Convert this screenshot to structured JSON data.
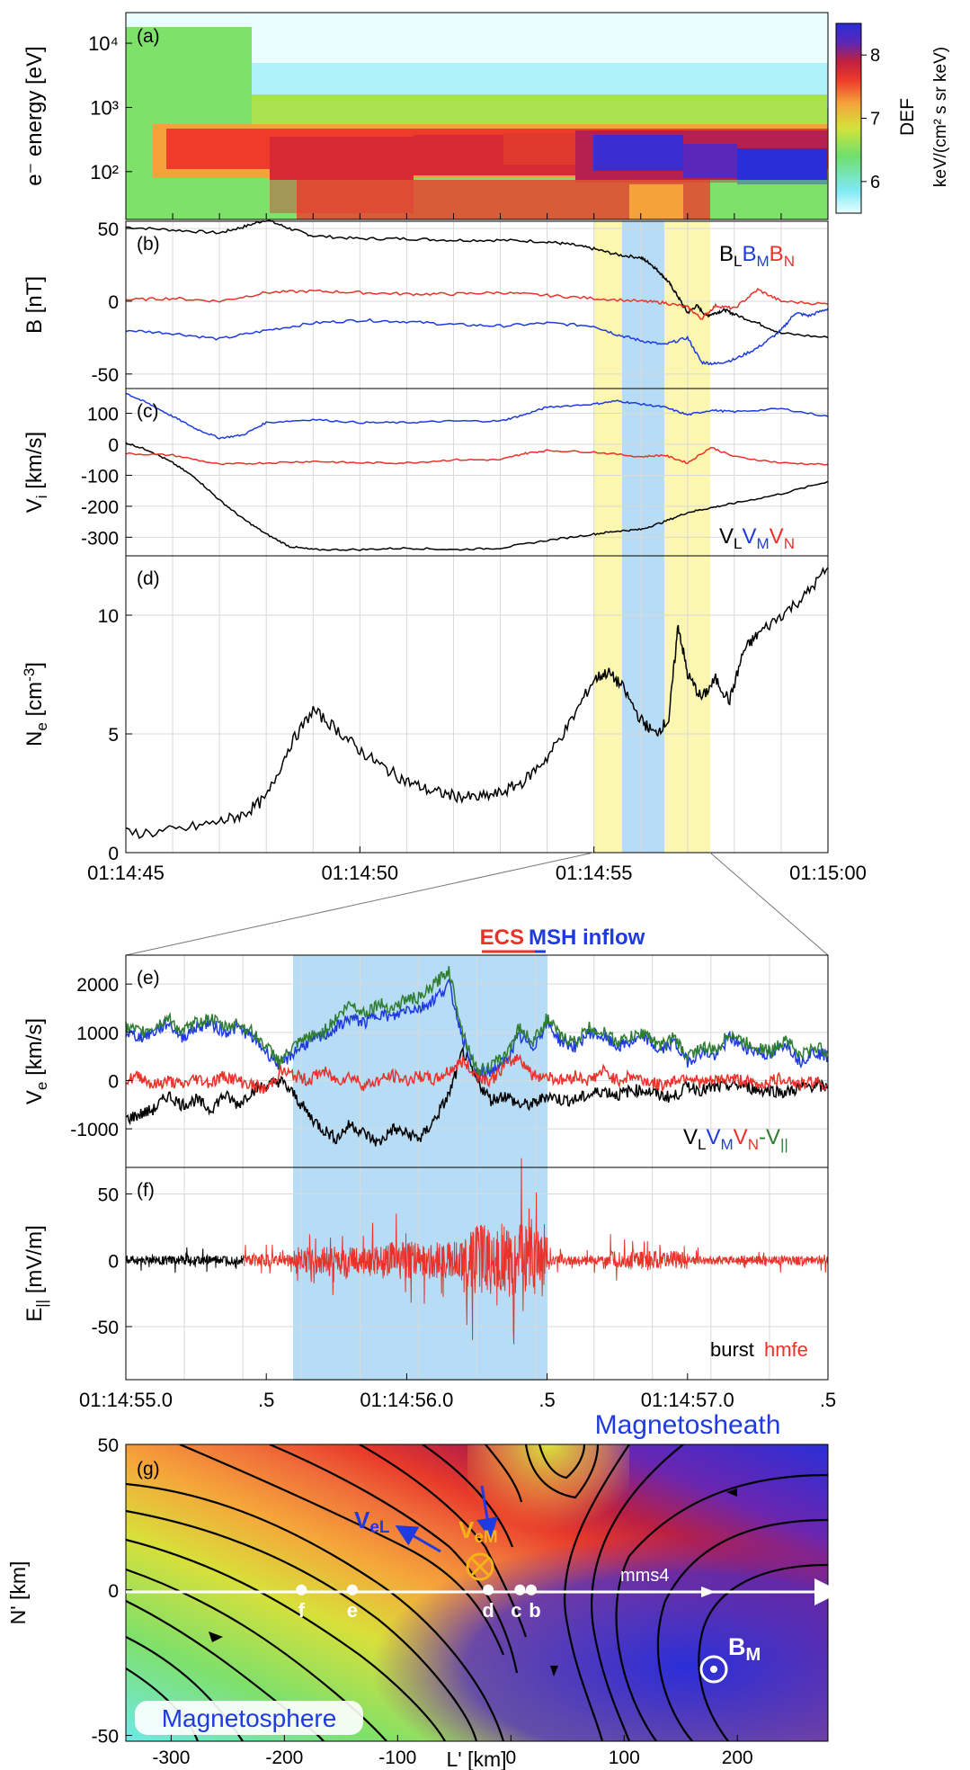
{
  "colors": {
    "black": "#000000",
    "blue": "#1f3be0",
    "red": "#e8322a",
    "green": "#2e7d32",
    "shade_yellow": "#fbf6b0",
    "shade_blue": "#b7dcf5",
    "white": "#ffffff"
  },
  "chart_data": [
    {
      "panel_label": "(a)",
      "type": "heatmap",
      "ylabel": "e⁻ energy [eV]",
      "yscale": "log",
      "ylim": [
        18,
        30000
      ],
      "ytick_labels": [
        "10⁴",
        "10³",
        "10²"
      ],
      "ytick_values": [
        10000,
        1000,
        100
      ],
      "colorbar": {
        "label": "DEF",
        "units": "keV/(cm² s sr keV)",
        "ticks": [
          "8",
          "7",
          "6"
        ],
        "range": [
          5.5,
          8.5
        ],
        "colors": [
          "#e8ffff",
          "#7fe9f5",
          "#6ee06e",
          "#d4e23a",
          "#f5a23a",
          "#ee3b2a",
          "#c02040",
          "#5b27b8",
          "#2a2ed8"
        ]
      },
      "bands": [
        {
          "t_start": 0.0,
          "t_end": 3.0,
          "low_eV": 18,
          "high_eV": 6000,
          "level": 7.0
        },
        {
          "t_start": 0.8,
          "t_end": 15.0,
          "low_eV": 40,
          "high_eV": 400,
          "level": 7.9
        },
        {
          "t_start": 3.0,
          "t_end": 8.0,
          "low_eV": 25,
          "high_eV": 300,
          "level": 8.0
        },
        {
          "t_start": 11.0,
          "t_end": 15.0,
          "low_eV": 30,
          "high_eV": 200,
          "level": 8.2
        }
      ]
    },
    {
      "panel_label": "(b)",
      "type": "line",
      "ylabel": "B [nT]",
      "ylim": [
        -60,
        55
      ],
      "ytick_values": [
        50,
        0,
        -50
      ],
      "legend": [
        "B",
        "L",
        "B",
        "M",
        "B",
        "N"
      ],
      "series": [
        {
          "name": "L",
          "color": "black",
          "x": [
            0,
            1,
            2,
            2.5,
            3,
            3.5,
            4,
            5,
            6,
            7,
            8,
            9,
            9.5,
            10,
            10.5,
            11,
            11.2,
            11.4,
            11.6,
            11.8,
            12.0,
            12.2,
            12.4,
            12.6,
            12.8,
            13,
            13.5,
            14,
            15
          ],
          "y": [
            51,
            49,
            47,
            51,
            56,
            50,
            45,
            43,
            43,
            42,
            42,
            41,
            39,
            36,
            32,
            30,
            26,
            20,
            13,
            3,
            -8,
            -3,
            -10,
            -8,
            -6,
            -9,
            -15,
            -22,
            -25
          ]
        },
        {
          "name": "M",
          "color": "blue",
          "x": [
            0,
            1,
            2,
            3,
            4,
            5,
            6,
            7,
            8,
            9,
            10,
            10.5,
            11,
            11.5,
            12,
            12.3,
            12.6,
            13,
            13.5,
            14,
            14.3,
            14.6,
            15
          ],
          "y": [
            -20,
            -22,
            -26,
            -20,
            -15,
            -13,
            -14,
            -16,
            -17,
            -15,
            -17,
            -23,
            -27,
            -30,
            -25,
            -42,
            -43,
            -40,
            -32,
            -20,
            -8,
            -10,
            -5
          ]
        },
        {
          "name": "N",
          "color": "red",
          "x": [
            0,
            1,
            2,
            3,
            4,
            5,
            6,
            7,
            8,
            9,
            10,
            11,
            11.5,
            12,
            12.3,
            12.6,
            13,
            13.5,
            14,
            15
          ],
          "y": [
            1,
            2,
            0,
            6,
            7,
            6,
            5,
            5,
            6,
            4,
            2,
            0,
            -1,
            -4,
            -12,
            -3,
            -5,
            8,
            0,
            -2
          ]
        }
      ]
    },
    {
      "panel_label": "(c)",
      "type": "line",
      "ylabel": "V_i [km/s]",
      "ylim": [
        -360,
        180
      ],
      "ytick_values": [
        100,
        0,
        -100,
        -200,
        -300
      ],
      "legend": [
        "V",
        "L",
        "V",
        "M",
        "V",
        "N"
      ],
      "series": [
        {
          "name": "L",
          "color": "black",
          "x": [
            0,
            0.5,
            1,
            1.5,
            2,
            2.5,
            3,
            3.5,
            4,
            5,
            6,
            7,
            8,
            9,
            10,
            10.5,
            11,
            11.5,
            12,
            12.5,
            13,
            14,
            15
          ],
          "y": [
            5,
            -20,
            -60,
            -110,
            -180,
            -240,
            -290,
            -330,
            -340,
            -340,
            -335,
            -340,
            -335,
            -310,
            -290,
            -280,
            -275,
            -250,
            -220,
            -205,
            -190,
            -160,
            -120
          ]
        },
        {
          "name": "M",
          "color": "blue",
          "x": [
            0,
            0.5,
            1,
            1.5,
            2,
            2.5,
            3,
            4,
            5,
            6,
            7,
            8,
            8.5,
            9,
            10,
            10.5,
            11,
            11.5,
            12,
            12.5,
            13,
            14,
            15
          ],
          "y": [
            165,
            130,
            90,
            50,
            20,
            30,
            70,
            80,
            70,
            70,
            75,
            75,
            95,
            120,
            130,
            140,
            130,
            120,
            95,
            110,
            105,
            115,
            90
          ]
        },
        {
          "name": "N",
          "color": "red",
          "x": [
            0,
            1,
            2,
            3,
            4,
            5,
            6,
            7,
            8,
            8.5,
            9,
            10,
            11,
            11.5,
            12,
            12.5,
            13,
            14,
            15
          ],
          "y": [
            -30,
            -35,
            -65,
            -60,
            -55,
            -60,
            -60,
            -50,
            -50,
            -30,
            -20,
            -25,
            -40,
            -35,
            -60,
            -10,
            -40,
            -60,
            -65
          ]
        }
      ]
    },
    {
      "panel_label": "(d)",
      "type": "line",
      "ylabel": "N_e [cm⁻³]",
      "ylim": [
        0,
        12.5
      ],
      "ytick_values": [
        10,
        5,
        0
      ],
      "series": [
        {
          "name": "Ne",
          "color": "black",
          "x": [
            0,
            1,
            2,
            2.5,
            3,
            3.5,
            4,
            4.5,
            5,
            5.5,
            6,
            6.5,
            7,
            7.5,
            8,
            8.5,
            9,
            9.5,
            10,
            10.3,
            10.6,
            11,
            11.3,
            11.6,
            11.8,
            12.0,
            12.3,
            12.6,
            12.9,
            13.2,
            13.5,
            14,
            14.5,
            15
          ],
          "y": [
            0.8,
            0.9,
            1.3,
            1.6,
            2.3,
            4.5,
            6.0,
            5.2,
            4.3,
            3.6,
            3.0,
            2.6,
            2.4,
            2.3,
            2.5,
            3.0,
            4.0,
            5.5,
            7.3,
            7.6,
            7.0,
            5.6,
            5.0,
            5.6,
            9.6,
            7.5,
            6.5,
            7.3,
            6.4,
            8.5,
            9.2,
            10.0,
            10.8,
            12.0
          ]
        }
      ],
      "xtick_labels": [
        "01:14:45",
        "01:14:50",
        "01:14:55",
        "01:15:00"
      ],
      "xtick_values": [
        0,
        5,
        10,
        15
      ]
    },
    {
      "panel_label": "(e)",
      "type": "line",
      "ylabel": "V_e [km/s]",
      "ylim": [
        -1800,
        2600
      ],
      "ytick_values": [
        2000,
        1000,
        0,
        -1000
      ],
      "top_labels": [
        "ECS",
        "MSH inflow"
      ],
      "legend": [
        "V",
        "L",
        "V",
        "M",
        "V",
        "N",
        "-V",
        "||"
      ],
      "series": [
        {
          "name": "L",
          "color": "black",
          "x": [
            0,
            0.2,
            0.4,
            0.6,
            0.8,
            1.0,
            1.2,
            1.4,
            1.6,
            1.8,
            2.0,
            2.2,
            2.4,
            2.6,
            2.8,
            3.0,
            3.2,
            3.4,
            3.6,
            3.8,
            4.0,
            4.2,
            4.4,
            4.6,
            4.8,
            5.0,
            5.2,
            5.4,
            5.6,
            5.8,
            6.0,
            6.2,
            6.4,
            6.6,
            6.8,
            7.0,
            7.2,
            7.4,
            7.6,
            7.8,
            8.0,
            8.2,
            8.4,
            8.6,
            8.8,
            9.0,
            9.2,
            9.4,
            9.6,
            9.8,
            10.0
          ],
          "y": [
            -800,
            -700,
            -600,
            -300,
            -500,
            -400,
            -600,
            -300,
            -500,
            -200,
            -100,
            0,
            -300,
            -700,
            -1000,
            -1200,
            -900,
            -1100,
            -1300,
            -1000,
            -1100,
            -1200,
            -800,
            -300,
            600,
            0,
            -400,
            -300,
            -500,
            -500,
            -300,
            -400,
            -400,
            -300,
            -200,
            -300,
            -200,
            -200,
            -300,
            -350,
            -100,
            -200,
            -150,
            -100,
            -100,
            -200,
            -200,
            -250,
            -150,
            -100,
            -150
          ]
        },
        {
          "name": "M",
          "color": "blue",
          "x": [
            0,
            0.2,
            0.4,
            0.6,
            0.8,
            1.0,
            1.2,
            1.4,
            1.6,
            1.8,
            2.0,
            2.2,
            2.4,
            2.6,
            2.8,
            3.0,
            3.2,
            3.4,
            3.6,
            3.8,
            4.0,
            4.2,
            4.4,
            4.6,
            4.8,
            5.0,
            5.2,
            5.4,
            5.6,
            5.8,
            6.0,
            6.2,
            6.4,
            6.6,
            6.8,
            7.0,
            7.2,
            7.4,
            7.6,
            7.8,
            8.0,
            8.2,
            8.4,
            8.6,
            8.8,
            9.0,
            9.2,
            9.4,
            9.6,
            9.8,
            10.0
          ],
          "y": [
            1000,
            900,
            1000,
            1200,
            900,
            1100,
            1200,
            1000,
            1100,
            900,
            600,
            300,
            600,
            800,
            900,
            1100,
            1300,
            1200,
            1400,
            1300,
            1500,
            1500,
            1700,
            2000,
            900,
            100,
            200,
            400,
            900,
            700,
            1200,
            800,
            700,
            1000,
            900,
            700,
            800,
            900,
            600,
            800,
            400,
            600,
            500,
            900,
            700,
            600,
            500,
            800,
            400,
            600,
            500
          ]
        },
        {
          "name": "N",
          "color": "red",
          "x": [
            0,
            0.2,
            0.4,
            0.6,
            0.8,
            1.0,
            1.2,
            1.4,
            1.6,
            1.8,
            2.0,
            2.2,
            2.4,
            2.6,
            2.8,
            3.0,
            3.2,
            3.4,
            3.6,
            3.8,
            4.0,
            4.2,
            4.4,
            4.6,
            4.8,
            5.0,
            5.2,
            5.4,
            5.6,
            5.8,
            6.0,
            6.2,
            6.4,
            6.6,
            6.8,
            7.0,
            7.2,
            7.4,
            7.6,
            7.8,
            8.0,
            8.2,
            8.4,
            8.6,
            8.8,
            9.0,
            9.2,
            9.4,
            9.6,
            9.8,
            10.0
          ],
          "y": [
            0,
            100,
            -100,
            0,
            -100,
            50,
            -50,
            100,
            0,
            -100,
            -200,
            200,
            100,
            0,
            200,
            0,
            100,
            -100,
            0,
            100,
            0,
            100,
            0,
            200,
            400,
            100,
            0,
            300,
            500,
            100,
            100,
            0,
            100,
            0,
            200,
            0,
            100,
            0,
            -100,
            0,
            100,
            -50,
            0,
            50,
            0,
            -100,
            0,
            50,
            -100,
            0,
            -100
          ]
        },
        {
          "name": "-V||",
          "color": "green",
          "x": [
            0,
            0.2,
            0.4,
            0.6,
            0.8,
            1.0,
            1.2,
            1.4,
            1.6,
            1.8,
            2.0,
            2.2,
            2.4,
            2.6,
            2.8,
            3.0,
            3.2,
            3.4,
            3.6,
            3.8,
            4.0,
            4.2,
            4.4,
            4.6,
            4.8,
            5.0,
            5.2,
            5.4,
            5.6,
            5.8,
            6.0,
            6.2,
            6.4,
            6.6,
            6.8,
            7.0,
            7.2,
            7.4,
            7.6,
            7.8,
            8.0,
            8.2,
            8.4,
            8.6,
            8.8,
            9.0,
            9.2,
            9.4,
            9.6,
            9.8,
            10.0
          ],
          "y": [
            1100,
            1000,
            1100,
            1300,
            1000,
            1200,
            1300,
            1100,
            1200,
            1000,
            700,
            400,
            700,
            900,
            1000,
            1300,
            1600,
            1400,
            1600,
            1500,
            1700,
            1700,
            2000,
            2300,
            1000,
            200,
            300,
            500,
            1100,
            800,
            1300,
            900,
            800,
            1100,
            1000,
            800,
            900,
            1000,
            700,
            900,
            500,
            700,
            600,
            1000,
            800,
            700,
            600,
            900,
            500,
            700,
            600
          ]
        }
      ]
    },
    {
      "panel_label": "(f)",
      "type": "line",
      "ylabel": "E_|| [mV/m]",
      "ylim": [
        -90,
        70
      ],
      "ytick_values": [
        50,
        0,
        -50
      ],
      "legend": [
        "burst",
        "hmfe"
      ],
      "xtick_labels": [
        "01:14:55.0",
        ".5",
        "01:14:56.0",
        ".5",
        "01:14:57.0",
        ".5"
      ],
      "xtick_values": [
        0,
        0.5,
        1.0,
        1.5,
        2.0,
        2.5
      ],
      "series": [
        {
          "name": "burst",
          "color": "black",
          "amplitude_segments": [
            [
              0.0,
              0.42,
              10
            ]
          ]
        },
        {
          "name": "hmfe",
          "color": "red",
          "amplitude_segments": [
            [
              0.42,
              0.6,
              14
            ],
            [
              0.6,
              0.9,
              30
            ],
            [
              0.9,
              1.2,
              40
            ],
            [
              1.2,
              1.5,
              80
            ],
            [
              1.5,
              1.7,
              10
            ],
            [
              1.7,
              2.0,
              20
            ],
            [
              2.0,
              2.5,
              10
            ]
          ]
        }
      ]
    },
    {
      "panel_label": "(g)",
      "type": "heatmap",
      "xlabel": "L' [km]",
      "ylabel": "N' [km]",
      "xlim": [
        -340,
        280
      ],
      "ylim": [
        -52,
        50
      ],
      "xtick_values": [
        -300,
        -200,
        -100,
        0,
        100,
        200
      ],
      "ytick_values": [
        50,
        0,
        -50
      ],
      "region_labels": [
        "Magnetosheath",
        "Magnetosphere"
      ],
      "arrow_labels": [
        "V",
        "eL",
        "V",
        "eM"
      ],
      "trajectory_label": "mms4",
      "field_label": [
        "B",
        "M"
      ],
      "points": [
        {
          "label": "f",
          "x": -185,
          "y": 0
        },
        {
          "label": "e",
          "x": -140,
          "y": 0
        },
        {
          "label": "d",
          "x": -20,
          "y": 0
        },
        {
          "label": "c",
          "x": 8,
          "y": 0
        },
        {
          "label": "b",
          "x": 18,
          "y": 0
        }
      ]
    }
  ]
}
